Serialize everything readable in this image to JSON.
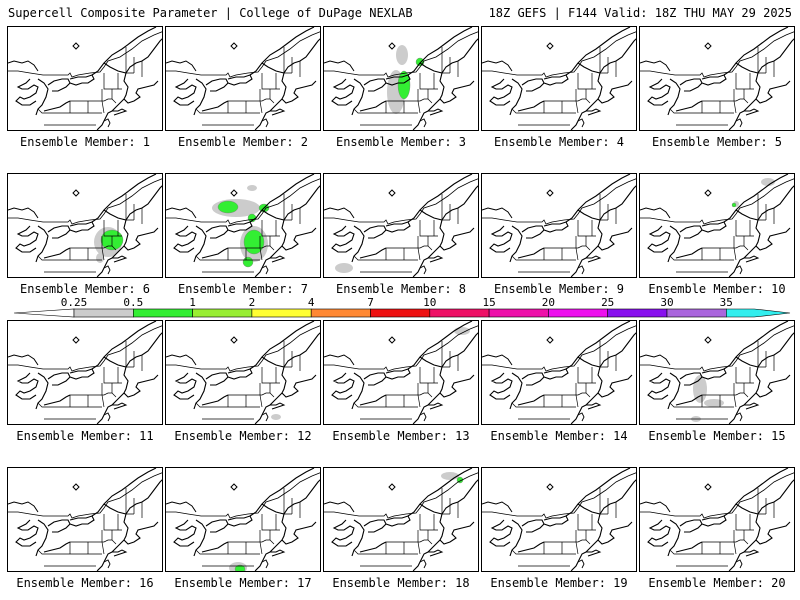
{
  "header": {
    "title": "Supercell Composite Parameter | College of DuPage NEXLAB",
    "run_info": "18Z GEFS | F144 Valid: 18Z THU MAY 29 2025"
  },
  "legend": {
    "labels": [
      "0.25",
      "0.5",
      "1",
      "2",
      "4",
      "7",
      "10",
      "15",
      "20",
      "25",
      "30",
      "35"
    ],
    "colors": [
      "#cccccc",
      "#33ee33",
      "#99ee33",
      "#ffff33",
      "#ff8833",
      "#ee1111",
      "#ee1166",
      "#ee11aa",
      "#ee11ee",
      "#8811ee",
      "#aa66dd",
      "#33eeee"
    ]
  },
  "members": [
    {
      "label": "Ensemble Member: 1",
      "blobs": []
    },
    {
      "label": "Ensemble Member: 2",
      "blobs": []
    },
    {
      "label": "Ensemble Member: 3",
      "blobs": [
        {
          "level": "0.25",
          "cx": 78,
          "cy": 28,
          "rx": 6,
          "ry": 10
        },
        {
          "level": "0.25",
          "cx": 72,
          "cy": 65,
          "rx": 9,
          "ry": 22
        },
        {
          "level": "0.5",
          "cx": 96,
          "cy": 35,
          "rx": 4,
          "ry": 4
        },
        {
          "level": "0.5",
          "cx": 80,
          "cy": 58,
          "rx": 6,
          "ry": 14
        }
      ]
    },
    {
      "label": "Ensemble Member: 4",
      "blobs": []
    },
    {
      "label": "Ensemble Member: 5",
      "blobs": []
    },
    {
      "label": "Ensemble Member: 6",
      "blobs": [
        {
          "level": "0.25",
          "cx": 100,
          "cy": 68,
          "rx": 14,
          "ry": 15
        },
        {
          "level": "0.5",
          "cx": 104,
          "cy": 66,
          "rx": 11,
          "ry": 10
        },
        {
          "level": "0.25",
          "cx": 92,
          "cy": 84,
          "rx": 4,
          "ry": 5
        }
      ]
    },
    {
      "label": "Ensemble Member: 7",
      "blobs": [
        {
          "level": "0.25",
          "cx": 70,
          "cy": 34,
          "rx": 24,
          "ry": 9
        },
        {
          "level": "0.5",
          "cx": 62,
          "cy": 33,
          "rx": 10,
          "ry": 6
        },
        {
          "level": "0.5",
          "cx": 98,
          "cy": 34,
          "rx": 5,
          "ry": 4
        },
        {
          "level": "0.5",
          "cx": 86,
          "cy": 44,
          "rx": 4,
          "ry": 4
        },
        {
          "level": "0.25",
          "cx": 88,
          "cy": 70,
          "rx": 14,
          "ry": 18
        },
        {
          "level": "0.5",
          "cx": 88,
          "cy": 68,
          "rx": 10,
          "ry": 12
        },
        {
          "level": "0.5",
          "cx": 82,
          "cy": 88,
          "rx": 5,
          "ry": 5
        },
        {
          "level": "0.25",
          "cx": 86,
          "cy": 14,
          "rx": 5,
          "ry": 3
        }
      ]
    },
    {
      "label": "Ensemble Member: 8",
      "blobs": [
        {
          "level": "0.25",
          "cx": 20,
          "cy": 94,
          "rx": 9,
          "ry": 5
        }
      ]
    },
    {
      "label": "Ensemble Member: 9",
      "blobs": []
    },
    {
      "label": "Ensemble Member: 10",
      "blobs": [
        {
          "level": "0.25",
          "cx": 128,
          "cy": 8,
          "rx": 7,
          "ry": 4
        },
        {
          "level": "0.25",
          "cx": 96,
          "cy": 30,
          "rx": 3,
          "ry": 3
        },
        {
          "level": "0.5",
          "cx": 94,
          "cy": 31,
          "rx": 2,
          "ry": 2
        }
      ]
    },
    {
      "label": "Ensemble Member: 11",
      "blobs": []
    },
    {
      "label": "Ensemble Member: 12",
      "blobs": [
        {
          "level": "0.25",
          "cx": 110,
          "cy": 96,
          "rx": 5,
          "ry": 3
        }
      ]
    },
    {
      "label": "Ensemble Member: 13",
      "blobs": [
        {
          "level": "0.25",
          "cx": 138,
          "cy": 10,
          "rx": 8,
          "ry": 4
        }
      ]
    },
    {
      "label": "Ensemble Member: 14",
      "blobs": []
    },
    {
      "label": "Ensemble Member: 15",
      "blobs": [
        {
          "level": "0.25",
          "cx": 60,
          "cy": 68,
          "rx": 7,
          "ry": 14
        },
        {
          "level": "0.25",
          "cx": 74,
          "cy": 82,
          "rx": 10,
          "ry": 4
        },
        {
          "level": "0.25",
          "cx": 56,
          "cy": 98,
          "rx": 5,
          "ry": 3
        }
      ]
    },
    {
      "label": "Ensemble Member: 16",
      "blobs": []
    },
    {
      "label": "Ensemble Member: 17",
      "blobs": [
        {
          "level": "0.25",
          "cx": 72,
          "cy": 100,
          "rx": 9,
          "ry": 6
        },
        {
          "level": "0.5",
          "cx": 74,
          "cy": 101,
          "rx": 5,
          "ry": 4
        }
      ]
    },
    {
      "label": "Ensemble Member: 18",
      "blobs": [
        {
          "level": "0.25",
          "cx": 126,
          "cy": 8,
          "rx": 9,
          "ry": 4
        },
        {
          "level": "0.5",
          "cx": 136,
          "cy": 12,
          "rx": 3,
          "ry": 3
        }
      ]
    },
    {
      "label": "Ensemble Member: 19",
      "blobs": []
    },
    {
      "label": "Ensemble Member: 20",
      "blobs": []
    }
  ]
}
